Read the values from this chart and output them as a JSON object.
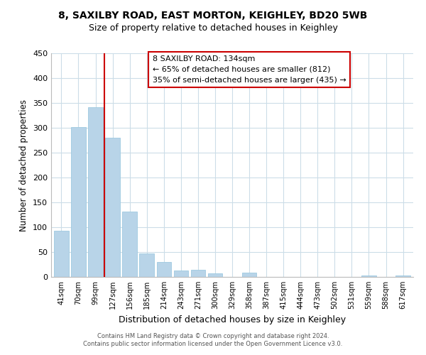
{
  "title": "8, SAXILBY ROAD, EAST MORTON, KEIGHLEY, BD20 5WB",
  "subtitle": "Size of property relative to detached houses in Keighley",
  "xlabel": "Distribution of detached houses by size in Keighley",
  "ylabel": "Number of detached properties",
  "bar_color": "#b8d4e8",
  "bar_edge_color": "#9ec9e0",
  "vline_color": "#cc0000",
  "vline_x": 2.5,
  "categories": [
    "41sqm",
    "70sqm",
    "99sqm",
    "127sqm",
    "156sqm",
    "185sqm",
    "214sqm",
    "243sqm",
    "271sqm",
    "300sqm",
    "329sqm",
    "358sqm",
    "387sqm",
    "415sqm",
    "444sqm",
    "473sqm",
    "502sqm",
    "531sqm",
    "559sqm",
    "588sqm",
    "617sqm"
  ],
  "values": [
    93,
    301,
    341,
    280,
    131,
    47,
    30,
    13,
    15,
    7,
    0,
    9,
    0,
    0,
    0,
    0,
    0,
    0,
    3,
    0,
    3
  ],
  "ylim": [
    0,
    450
  ],
  "yticks": [
    0,
    50,
    100,
    150,
    200,
    250,
    300,
    350,
    400,
    450
  ],
  "annotation_title": "8 SAXILBY ROAD: 134sqm",
  "annotation_line1": "← 65% of detached houses are smaller (812)",
  "annotation_line2": "35% of semi-detached houses are larger (435) →",
  "annotation_box_color": "#ffffff",
  "annotation_box_edge_color": "#cc0000",
  "footer_line1": "Contains HM Land Registry data © Crown copyright and database right 2024.",
  "footer_line2": "Contains public sector information licensed under the Open Government Licence v3.0.",
  "background_color": "#ffffff",
  "grid_color": "#ccdde8"
}
